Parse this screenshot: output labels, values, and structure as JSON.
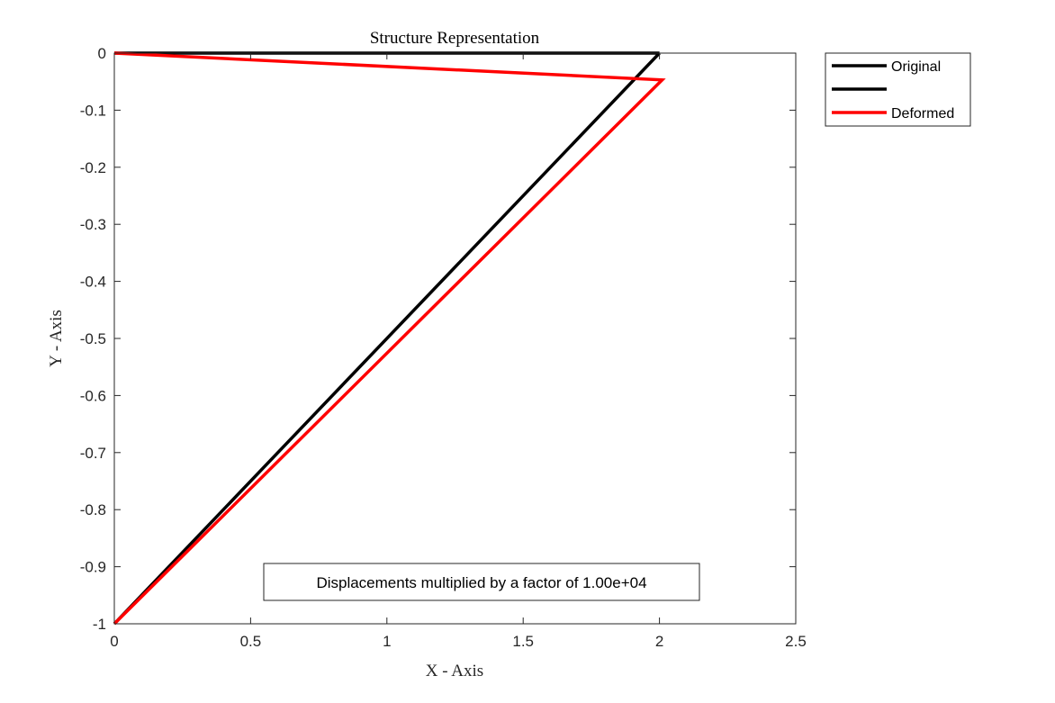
{
  "chart_data": {
    "type": "line",
    "title": "Structure Representation",
    "xlabel": "X - Axis",
    "ylabel": "Y - Axis",
    "xlim": [
      0,
      2.5
    ],
    "ylim": [
      -1,
      0
    ],
    "xticks": [
      0,
      0.5,
      1,
      1.5,
      2,
      2.5
    ],
    "xtick_labels": [
      "0",
      "0.5",
      "1",
      "1.5",
      "2",
      "2.5"
    ],
    "yticks": [
      0,
      -0.1,
      -0.2,
      -0.3,
      -0.4,
      -0.5,
      -0.6,
      -0.7,
      -0.8,
      -0.9,
      -1
    ],
    "ytick_labels": [
      "0",
      "-0.1",
      "-0.2",
      "-0.3",
      "-0.4",
      "-0.5",
      "-0.6",
      "-0.7",
      "-0.8",
      "-0.9",
      "-1"
    ],
    "grid": false,
    "legend_position": "outside-top-right",
    "series": [
      {
        "name": "Original",
        "color": "#000000",
        "x": [
          0,
          2
        ],
        "y": [
          0,
          0
        ]
      },
      {
        "name": "",
        "color": "#000000",
        "x": [
          2,
          0
        ],
        "y": [
          0,
          -1
        ]
      },
      {
        "name": "Deformed",
        "color": "#ff0000",
        "x": [
          0,
          2.01,
          0
        ],
        "y": [
          0,
          -0.047,
          -1
        ]
      }
    ],
    "annotation": "Displacements multiplied by a factor of 1.00e+04"
  }
}
